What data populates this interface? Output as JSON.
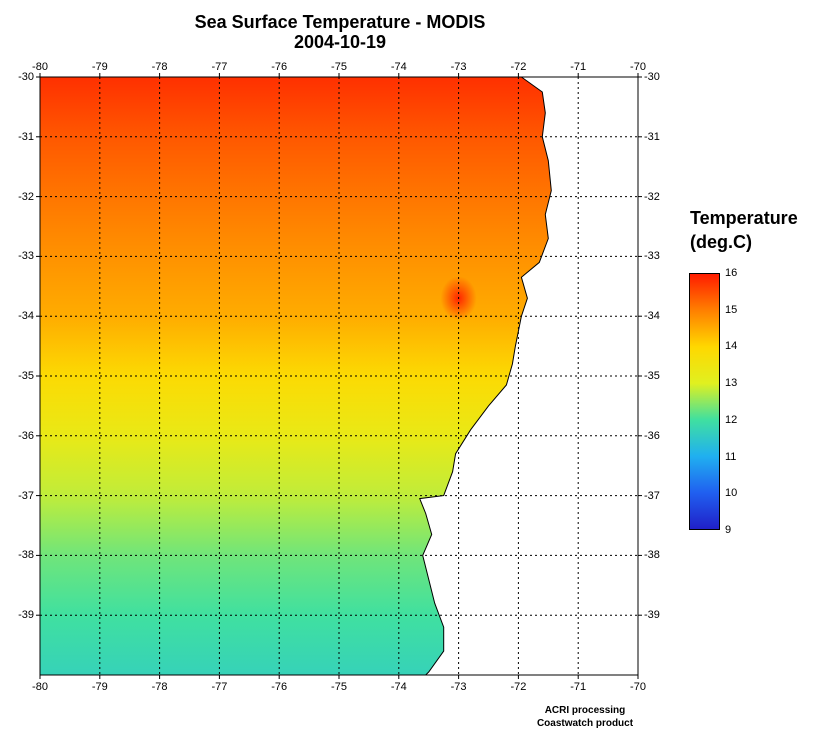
{
  "title": "Sea Surface Temperature - MODIS",
  "date": "2004-10-19",
  "map": {
    "lon_range": [
      -80,
      -70
    ],
    "lat_range": [
      -40,
      -30
    ],
    "lon_ticks": [
      "-80",
      "-79",
      "-78",
      "-77",
      "-76",
      "-75",
      "-74",
      "-73",
      "-72",
      "-71",
      "-70"
    ],
    "lat_ticks": [
      "-30",
      "-31",
      "-32",
      "-33",
      "-34",
      "-35",
      "-36",
      "-37",
      "-38",
      "-39"
    ],
    "gridlines": true,
    "coastline": [
      [
        -71.95,
        -30.0
      ],
      [
        -71.6,
        -30.25
      ],
      [
        -71.55,
        -30.6
      ],
      [
        -71.6,
        -31.0
      ],
      [
        -71.5,
        -31.4
      ],
      [
        -71.45,
        -31.9
      ],
      [
        -71.55,
        -32.3
      ],
      [
        -71.5,
        -32.7
      ],
      [
        -71.65,
        -33.1
      ],
      [
        -71.95,
        -33.35
      ],
      [
        -71.85,
        -33.7
      ],
      [
        -71.95,
        -34.0
      ],
      [
        -72.05,
        -34.5
      ],
      [
        -72.1,
        -34.8
      ],
      [
        -72.2,
        -35.15
      ],
      [
        -72.5,
        -35.5
      ],
      [
        -72.8,
        -35.9
      ],
      [
        -73.05,
        -36.3
      ],
      [
        -73.1,
        -36.6
      ],
      [
        -73.25,
        -37.0
      ],
      [
        -73.65,
        -37.05
      ],
      [
        -73.55,
        -37.3
      ],
      [
        -73.45,
        -37.65
      ],
      [
        -73.6,
        -38.0
      ],
      [
        -73.5,
        -38.4
      ],
      [
        -73.4,
        -38.8
      ],
      [
        -73.25,
        -39.2
      ],
      [
        -73.25,
        -39.6
      ],
      [
        -73.5,
        -39.95
      ],
      [
        -73.55,
        -40.0
      ]
    ],
    "ocean_temperature": [
      {
        "lat": -30.0,
        "temp": 15.8
      },
      {
        "lat": -31.0,
        "temp": 15.4
      },
      {
        "lat": -32.0,
        "temp": 15.1
      },
      {
        "lat": -33.0,
        "temp": 14.8
      },
      {
        "lat": -34.0,
        "temp": 14.5
      },
      {
        "lat": -35.0,
        "temp": 13.9
      },
      {
        "lat": -36.0,
        "temp": 13.3
      },
      {
        "lat": -37.0,
        "temp": 12.8
      },
      {
        "lat": -38.0,
        "temp": 12.3
      },
      {
        "lat": -39.0,
        "temp": 12.0
      },
      {
        "lat": -40.0,
        "temp": 11.7
      }
    ],
    "warm_spot": {
      "lon": -73.0,
      "lat": -33.7,
      "temp": 15.9
    }
  },
  "colorbar": {
    "title_line1": "Temperature",
    "title_line2": "(deg.C)",
    "min": 9,
    "max": 16,
    "labels": [
      "16",
      "15",
      "14",
      "13",
      "12",
      "11",
      "10",
      "9"
    ],
    "colors": [
      "#2020c8",
      "#2060f0",
      "#20b0f0",
      "#40e0a0",
      "#e0f020",
      "#ffd800",
      "#ff8000",
      "#ff1c00"
    ]
  },
  "credit": {
    "line1": "ACRI processing",
    "line2": "Coastwatch product"
  }
}
